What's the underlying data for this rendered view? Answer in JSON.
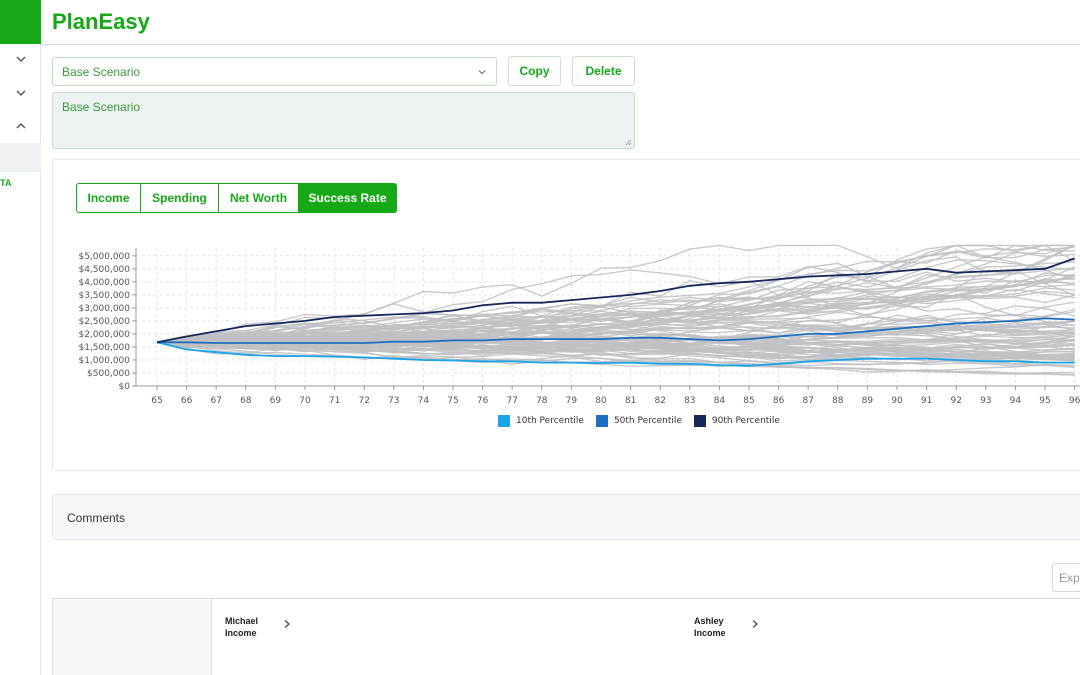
{
  "app": {
    "title": "PlanEasy"
  },
  "sidebar": {
    "cut_label": "TA"
  },
  "scenario": {
    "selected": "Base Scenario",
    "notes": "Base Scenario",
    "copy_label": "Copy",
    "delete_label": "Delete"
  },
  "chart_tabs": [
    {
      "label": "Income"
    },
    {
      "label": "Spending"
    },
    {
      "label": "Net Worth"
    },
    {
      "label": "Success Rate",
      "active": true
    }
  ],
  "chart_data": {
    "type": "line",
    "title": "",
    "xlabel": "",
    "ylabel": "",
    "x": [
      65,
      66,
      67,
      68,
      69,
      70,
      71,
      72,
      73,
      74,
      75,
      76,
      77,
      78,
      79,
      80,
      81,
      82,
      83,
      84,
      85,
      86,
      87,
      88,
      89,
      90,
      91,
      92,
      93,
      94,
      95,
      96
    ],
    "x_ticks": [
      "65",
      "66",
      "67",
      "68",
      "69",
      "70",
      "71",
      "72",
      "73",
      "74",
      "75",
      "76",
      "77",
      "78",
      "79",
      "80",
      "81",
      "82",
      "83",
      "84",
      "85",
      "86",
      "87",
      "88",
      "89",
      "90",
      "91",
      "92",
      "93",
      "94",
      "95",
      "96"
    ],
    "ylim": [
      0,
      5300000
    ],
    "y_ticks": [
      0,
      500000,
      1000000,
      1500000,
      2000000,
      2500000,
      3000000,
      3500000,
      4000000,
      4500000,
      5000000
    ],
    "y_tick_labels": [
      "$0",
      "$500,000",
      "$1,000,000",
      "$1,500,000",
      "$2,000,000",
      "$2,500,000",
      "$3,000,000",
      "$3,500,000",
      "$4,000,000",
      "$4,500,000",
      "$5,000,000"
    ],
    "grid": true,
    "legend_position": "bottom",
    "start_value": 1680000,
    "simulation_paths": "many grey Monte Carlo paths fanning out from the start value",
    "series": [
      {
        "name": "10th Percentile",
        "color": "#1aa3e8",
        "values": [
          1680000,
          1400000,
          1300000,
          1200000,
          1150000,
          1150000,
          1130000,
          1100000,
          1050000,
          1000000,
          980000,
          950000,
          950000,
          900000,
          900000,
          880000,
          900000,
          850000,
          850000,
          800000,
          780000,
          850000,
          950000,
          1000000,
          1050000,
          1050000,
          1050000,
          1000000,
          950000,
          950000,
          900000,
          900000
        ]
      },
      {
        "name": "50th Percentile",
        "color": "#1f6fbf",
        "values": [
          1680000,
          1680000,
          1650000,
          1650000,
          1650000,
          1650000,
          1650000,
          1650000,
          1700000,
          1700000,
          1750000,
          1750000,
          1800000,
          1800000,
          1800000,
          1800000,
          1850000,
          1850000,
          1800000,
          1750000,
          1800000,
          1900000,
          2000000,
          2000000,
          2100000,
          2200000,
          2300000,
          2400000,
          2450000,
          2500000,
          2600000,
          2550000
        ]
      },
      {
        "name": "90th Percentile",
        "color": "#15285a",
        "values": [
          1680000,
          1900000,
          2100000,
          2300000,
          2400000,
          2500000,
          2650000,
          2700000,
          2750000,
          2800000,
          2900000,
          3100000,
          3200000,
          3200000,
          3300000,
          3400000,
          3500000,
          3650000,
          3850000,
          3950000,
          4000000,
          4100000,
          4200000,
          4250000,
          4300000,
          4400000,
          4500000,
          4350000,
          4400000,
          4450000,
          4500000,
          4900000
        ]
      }
    ]
  },
  "colors": {
    "accent": "#16a816",
    "sim_path": "#bfc1c4"
  },
  "comments": {
    "title": "Comments"
  },
  "expand": {
    "placeholder": "Expand"
  },
  "table": {
    "columns": [
      {
        "line1": "Michael",
        "line2": "Income"
      },
      {
        "line1": "Ashley",
        "line2": "Income"
      }
    ]
  }
}
